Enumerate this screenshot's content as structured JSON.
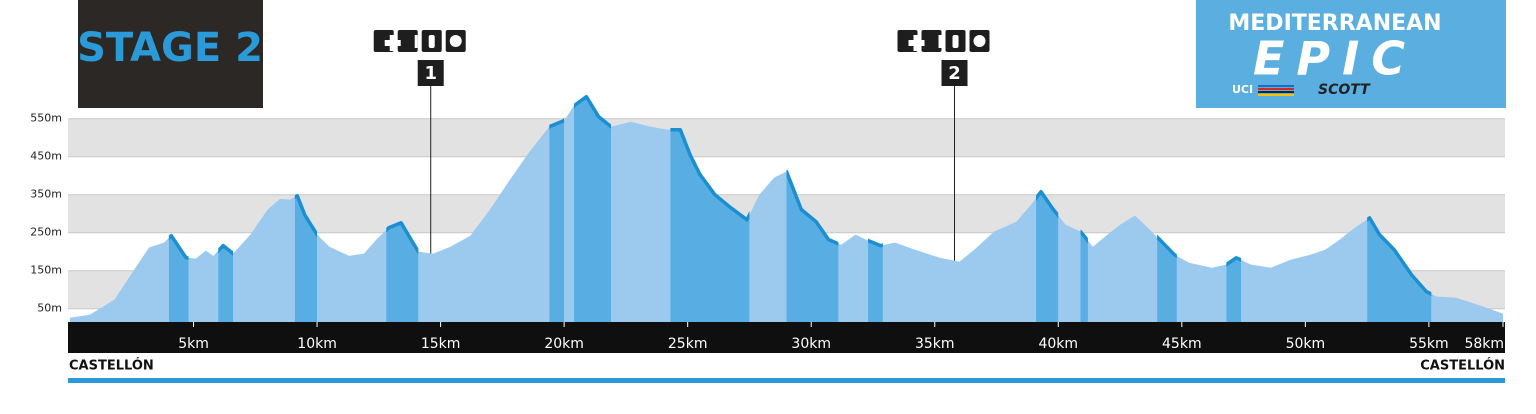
{
  "header": {
    "stage": "STAGE 2"
  },
  "logo": {
    "name": "MEDITERRANEAN",
    "word": "EPIC",
    "uci": "UCI",
    "sponsor": "SCOTT"
  },
  "chart_data": {
    "type": "area",
    "x": [
      0,
      0.8,
      1.8,
      2.6,
      3.2,
      3.8,
      4.1,
      4.7,
      5.1,
      5.5,
      5.8,
      6.2,
      6.6,
      7.3,
      8.0,
      8.5,
      8.9,
      9.2,
      9.5,
      10.0,
      10.5,
      11.3,
      11.9,
      12.4,
      12.9,
      13.4,
      13.8,
      14.1,
      14.7,
      15.4,
      16.2,
      17.0,
      17.8,
      18.6,
      19.4,
      20.0,
      20.4,
      20.9,
      21.4,
      21.9,
      22.7,
      23.5,
      24.2,
      24.7,
      25.1,
      25.5,
      26.1,
      26.7,
      27.4,
      27.9,
      28.5,
      29.0,
      29.6,
      30.2,
      30.7,
      31.2,
      31.8,
      32.2,
      32.8,
      33.4,
      34.2,
      35.2,
      36.0,
      36.6,
      37.4,
      38.3,
      38.9,
      39.3,
      39.8,
      40.3,
      40.9,
      41.4,
      41.9,
      42.5,
      43.1,
      43.5,
      44.1,
      44.7,
      45.3,
      46.2,
      46.8,
      47.2,
      47.8,
      48.6,
      49.4,
      50.2,
      50.8,
      51.4,
      52.0,
      52.6,
      53.0,
      53.6,
      54.3,
      54.9,
      55.3,
      56.1,
      57.1,
      58
    ],
    "values": [
      26,
      34,
      74,
      153,
      211,
      224,
      242,
      184,
      182,
      203,
      189,
      216,
      195,
      245,
      311,
      339,
      337,
      347,
      297,
      245,
      213,
      189,
      195,
      232,
      263,
      276,
      232,
      200,
      195,
      213,
      242,
      311,
      389,
      463,
      529,
      545,
      584,
      608,
      555,
      529,
      542,
      529,
      521,
      521,
      455,
      403,
      350,
      318,
      284,
      350,
      395,
      411,
      311,
      279,
      232,
      218,
      245,
      232,
      216,
      224,
      205,
      184,
      174,
      205,
      253,
      279,
      324,
      358,
      311,
      271,
      253,
      213,
      240,
      271,
      295,
      271,
      232,
      192,
      171,
      158,
      166,
      184,
      166,
      158,
      179,
      192,
      205,
      232,
      263,
      289,
      245,
      205,
      139,
      95,
      82,
      79,
      58,
      37
    ],
    "climbs": [
      [
        4.0,
        4.8
      ],
      [
        6.0,
        6.6
      ],
      [
        9.1,
        10.0
      ],
      [
        12.8,
        14.1
      ],
      [
        19.4,
        20.0
      ],
      [
        20.4,
        21.9
      ],
      [
        24.3,
        27.5
      ],
      [
        29.0,
        31.1
      ],
      [
        32.3,
        32.9
      ],
      [
        39.1,
        40.0
      ],
      [
        40.9,
        41.2
      ],
      [
        44.0,
        44.8
      ],
      [
        46.8,
        47.4
      ],
      [
        52.5,
        55.1
      ]
    ],
    "aid_stations": [
      {
        "x": 14.6,
        "label": "1"
      },
      {
        "x": 35.8,
        "label": "2"
      }
    ],
    "start_label": "CASTELLÓN",
    "finish_label": "CASTELLÓN",
    "colors": {
      "area": "#9ccaee",
      "climb": "#58aee3",
      "line": "#1b8fd1",
      "band": "#e2e2e2"
    },
    "xlim": [
      0,
      58
    ],
    "ylim": [
      15,
      640
    ],
    "xticks": [
      {
        "value": 5,
        "label": "5km"
      },
      {
        "value": 10,
        "label": "10km"
      },
      {
        "value": 15,
        "label": "15km"
      },
      {
        "value": 20,
        "label": "20km"
      },
      {
        "value": 25,
        "label": "25km"
      },
      {
        "value": 30,
        "label": "30km"
      },
      {
        "value": 35,
        "label": "35km"
      },
      {
        "value": 40,
        "label": "40km"
      },
      {
        "value": 45,
        "label": "45km"
      },
      {
        "value": 50,
        "label": "50km"
      },
      {
        "value": 55,
        "label": "55km"
      },
      {
        "value": 58,
        "label": "58km"
      }
    ],
    "yticks": [
      {
        "value": 50,
        "label": "50m"
      },
      {
        "value": 150,
        "label": "150m"
      },
      {
        "value": 250,
        "label": "250m"
      },
      {
        "value": 350,
        "label": "350m"
      },
      {
        "value": 450,
        "label": "450m"
      },
      {
        "value": 550,
        "label": "550m"
      }
    ],
    "grid": true
  }
}
